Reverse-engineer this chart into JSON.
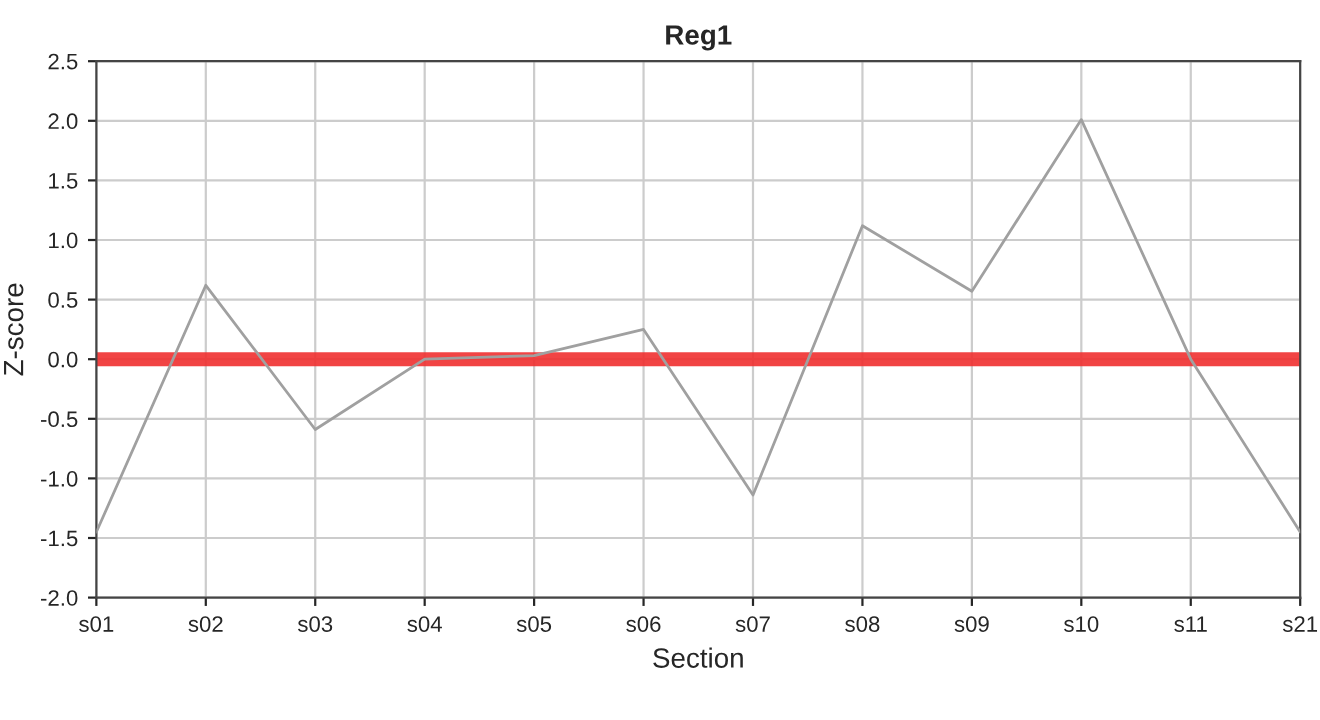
{
  "chart_data": {
    "type": "line",
    "title": "Reg1",
    "xlabel": "Section",
    "ylabel": "Z-score",
    "categories": [
      "s01",
      "s02",
      "s03",
      "s04",
      "s05",
      "s06",
      "s07",
      "s08",
      "s09",
      "s10",
      "s11",
      "s21"
    ],
    "series": [
      {
        "color": "#a0a0a0",
        "values": [
          -1.45,
          0.62,
          -0.59,
          0.0,
          0.03,
          0.25,
          -1.14,
          1.12,
          0.57,
          2.01,
          0.0,
          -1.45
        ]
      }
    ],
    "ylim": [
      -2.0,
      2.5
    ],
    "yticks": [
      {
        "value": -2.0,
        "label": "-2.0"
      },
      {
        "value": -1.5,
        "label": "-1.5"
      },
      {
        "value": -1.0,
        "label": "-1.0"
      },
      {
        "value": -0.5,
        "label": "-0.5"
      },
      {
        "value": 0.0,
        "label": "0.0"
      },
      {
        "value": 0.5,
        "label": "0.5"
      },
      {
        "value": 1.0,
        "label": "1.0"
      },
      {
        "value": 1.5,
        "label": "1.5"
      },
      {
        "value": 2.0,
        "label": "2.0"
      },
      {
        "value": 2.5,
        "label": "2.5"
      }
    ],
    "ref_lines": [
      {
        "axis": "y",
        "value": 0,
        "color": "#f03030"
      }
    ],
    "grid": true,
    "legend": false,
    "marker": "none",
    "line_style": "solid"
  }
}
